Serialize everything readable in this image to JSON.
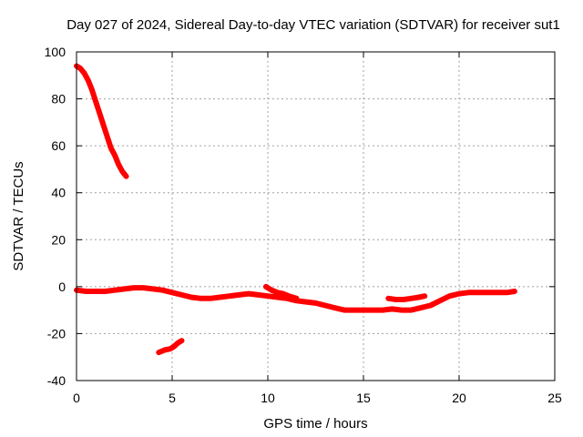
{
  "chart_data": {
    "type": "line",
    "title": "Day 027 of 2024, Sidereal Day-to-day VTEC variation (SDTVAR) for receiver sut1",
    "xlabel": "GPS time / hours",
    "ylabel": "SDTVAR / TECUs",
    "xlim": [
      0,
      25
    ],
    "ylim": [
      -40,
      100
    ],
    "xticks": [
      0,
      5,
      10,
      15,
      20,
      25
    ],
    "yticks": [
      -40,
      -20,
      0,
      20,
      40,
      60,
      80,
      100
    ],
    "grid": true,
    "legend": "none",
    "series_color": "#ff0000",
    "series": [
      {
        "x": [
          0,
          0.2,
          0.4,
          0.6,
          0.8,
          1.0,
          1.2,
          1.4,
          1.6,
          1.8,
          2.0,
          2.2,
          2.4,
          2.6
        ],
        "y": [
          94,
          93,
          91,
          88,
          84,
          79,
          74,
          69,
          64,
          59,
          56,
          52,
          49,
          47
        ]
      },
      {
        "x": [
          4.3,
          4.6,
          4.9,
          5.1,
          5.3,
          5.5
        ],
        "y": [
          -28,
          -27,
          -26.5,
          -25.5,
          -24,
          -23
        ]
      },
      {
        "x": [
          0,
          0.5,
          1,
          1.5,
          2,
          2.5,
          3,
          3.5,
          4,
          4.5,
          5,
          5.5,
          6,
          6.5,
          7,
          7.5,
          8,
          8.5,
          9,
          9.5,
          10,
          10.5,
          11,
          11.5,
          12,
          12.5,
          13,
          13.5,
          14,
          14.5,
          15,
          15.5,
          16,
          16.5,
          17,
          17.5,
          18,
          18.5,
          19,
          19.5,
          20,
          20.5,
          21,
          21.5,
          22,
          22.5,
          22.9
        ],
        "y": [
          -1.5,
          -2,
          -2,
          -2,
          -1.5,
          -1,
          -0.5,
          -0.5,
          -1,
          -1.5,
          -2.5,
          -3.5,
          -4.5,
          -5,
          -5,
          -4.5,
          -4,
          -3.5,
          -3,
          -3.5,
          -4,
          -4.5,
          -5,
          -6,
          -6.5,
          -7,
          -8,
          -9,
          -10,
          -10,
          -10,
          -10,
          -10,
          -9.5,
          -10,
          -10,
          -9,
          -8,
          -6,
          -4,
          -3,
          -2.5,
          -2.5,
          -2.5,
          -2.5,
          -2.5,
          -2
        ]
      },
      {
        "x": [
          9.9,
          10.2,
          10.5,
          10.8,
          11.1,
          11.5
        ],
        "y": [
          0,
          -1.5,
          -2.5,
          -3,
          -4,
          -5
        ]
      },
      {
        "x": [
          16.3,
          16.7,
          17.1,
          17.5,
          17.9,
          18.2
        ],
        "y": [
          -5,
          -5.5,
          -5.5,
          -5,
          -4.5,
          -4
        ]
      }
    ]
  }
}
